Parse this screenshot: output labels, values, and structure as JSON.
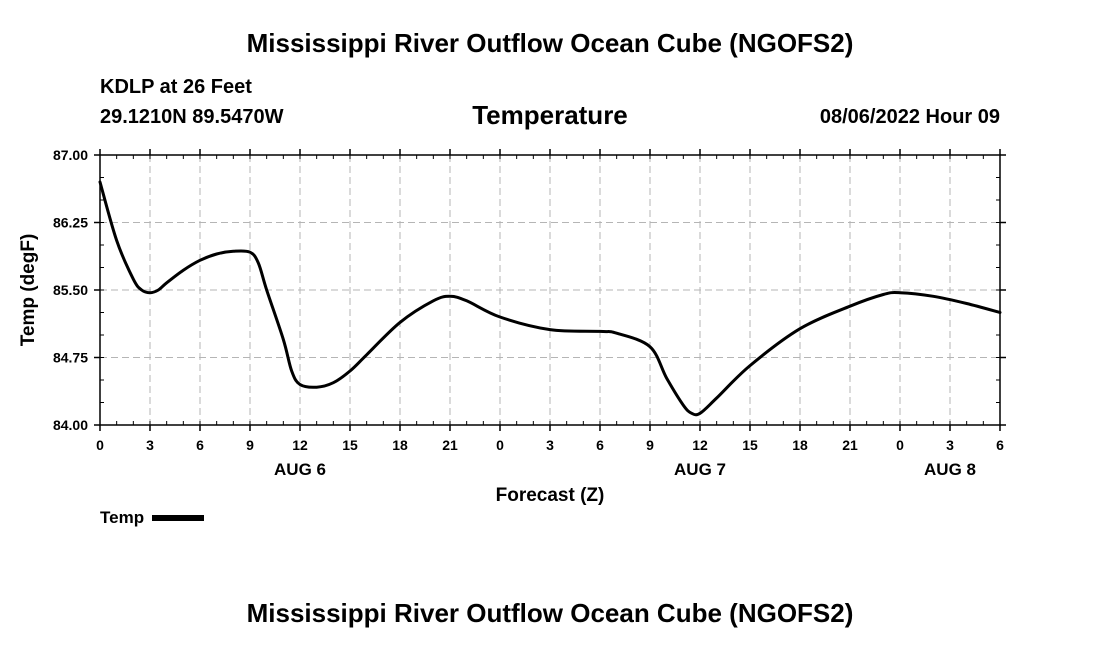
{
  "header": {
    "title": "Mississippi River Outflow Ocean Cube (NGOFS2)",
    "station": "KDLP at 26 Feet",
    "coordinates": "29.1210N  89.5470W",
    "subtitle": "Temperature",
    "datetime": "08/06/2022 Hour 09"
  },
  "footer": {
    "title": "Mississippi River Outflow Ocean Cube (NGOFS2)"
  },
  "legend": {
    "label": "Temp"
  },
  "chart_data": {
    "type": "line",
    "title": "Temperature",
    "xlabel": "Forecast (Z)",
    "ylabel": "Temp (degF)",
    "xlim": [
      0,
      54
    ],
    "ylim": [
      84.0,
      87.0
    ],
    "yticks": [
      84.0,
      84.75,
      85.5,
      86.25,
      87.0
    ],
    "ytick_labels": [
      "84.00",
      "84.75",
      "85.50",
      "86.25",
      "87.00"
    ],
    "xticks": [
      0,
      3,
      6,
      9,
      12,
      15,
      18,
      21,
      24,
      27,
      30,
      33,
      36,
      39,
      42,
      45,
      48,
      51,
      54
    ],
    "xtick_labels": [
      "0",
      "3",
      "6",
      "9",
      "12",
      "15",
      "18",
      "21",
      "0",
      "3",
      "6",
      "9",
      "12",
      "15",
      "18",
      "21",
      "0",
      "3",
      "6"
    ],
    "date_labels": [
      {
        "x": 12,
        "label": "AUG 6"
      },
      {
        "x": 36,
        "label": "AUG 7"
      },
      {
        "x": 51,
        "label": "AUG 8"
      }
    ],
    "grid": true,
    "series": [
      {
        "name": "Temp",
        "color": "#000000",
        "x": [
          0,
          1,
          2,
          2.5,
          3,
          3.5,
          4,
          5,
          6,
          7,
          8,
          9,
          9.5,
          10,
          11,
          11.5,
          12,
          13,
          14,
          15,
          16,
          18,
          20,
          21,
          22,
          24,
          27,
          30,
          31,
          33,
          34,
          35,
          35.5,
          36,
          37,
          39,
          42,
          45,
          47,
          48,
          50,
          52,
          54
        ],
        "values": [
          86.7,
          86.05,
          85.62,
          85.5,
          85.47,
          85.5,
          85.58,
          85.72,
          85.83,
          85.9,
          85.93,
          85.92,
          85.8,
          85.5,
          84.95,
          84.6,
          84.45,
          84.42,
          84.47,
          84.6,
          84.78,
          85.14,
          85.38,
          85.43,
          85.38,
          85.2,
          85.06,
          85.04,
          85.02,
          84.87,
          84.52,
          84.22,
          84.13,
          84.13,
          84.3,
          84.66,
          85.07,
          85.32,
          85.45,
          85.47,
          85.43,
          85.35,
          85.25
        ]
      }
    ]
  }
}
